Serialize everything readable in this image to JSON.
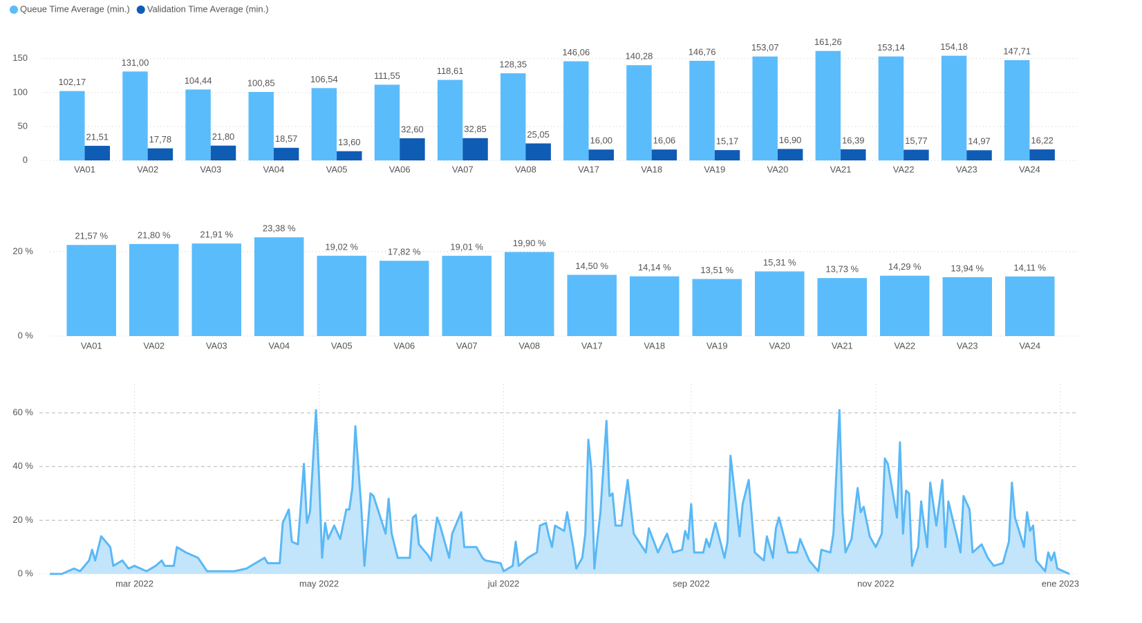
{
  "chart_data": [
    {
      "type": "bar",
      "categories": [
        "VA01",
        "VA02",
        "VA03",
        "VA04",
        "VA05",
        "VA06",
        "VA07",
        "VA08",
        "VA17",
        "VA18",
        "VA19",
        "VA20",
        "VA21",
        "VA22",
        "VA23",
        "VA24"
      ],
      "series": [
        {
          "name": "Queue Time Average (min.)",
          "color": "#5bbcfc",
          "values": [
            102.17,
            131.0,
            104.44,
            100.85,
            106.54,
            111.55,
            118.61,
            128.35,
            146.06,
            140.28,
            146.76,
            153.07,
            161.26,
            153.14,
            154.18,
            147.71
          ],
          "value_labels": [
            "102,17",
            "131,00",
            "104,44",
            "100,85",
            "106,54",
            "111,55",
            "118,61",
            "128,35",
            "146,06",
            "140,28",
            "146,76",
            "153,07",
            "161,26",
            "153,14",
            "154,18",
            "147,71"
          ]
        },
        {
          "name": "Validation Time Average (min.)",
          "color": "#0f5cb5",
          "values": [
            21.51,
            17.78,
            21.8,
            18.57,
            13.6,
            32.6,
            32.85,
            25.05,
            16.0,
            16.06,
            15.17,
            16.9,
            16.39,
            15.77,
            14.97,
            16.22
          ],
          "value_labels": [
            "21,51",
            "17,78",
            "21,80",
            "18,57",
            "13,60",
            "32,60",
            "32,85",
            "25,05",
            "16,00",
            "16,06",
            "15,17",
            "16,90",
            "16,39",
            "15,77",
            "14,97",
            "16,22"
          ]
        }
      ],
      "ylim": [
        0,
        165
      ],
      "yticks": [
        0,
        50,
        100,
        150
      ],
      "grid": true,
      "legend": "top-left"
    },
    {
      "type": "bar",
      "categories": [
        "VA01",
        "VA02",
        "VA03",
        "VA04",
        "VA05",
        "VA06",
        "VA07",
        "VA08",
        "VA17",
        "VA18",
        "VA19",
        "VA20",
        "VA21",
        "VA22",
        "VA23",
        "VA24"
      ],
      "series": [
        {
          "color": "#5bbcfc",
          "values": [
            21.57,
            21.8,
            21.91,
            23.38,
            19.02,
            17.82,
            19.01,
            19.9,
            14.5,
            14.14,
            13.51,
            15.31,
            13.73,
            14.29,
            13.94,
            14.11
          ],
          "value_labels": [
            "21,57 %",
            "21,80 %",
            "21,91 %",
            "23,38 %",
            "19,02 %",
            "17,82 %",
            "19,01 %",
            "19,90 %",
            "14,50 %",
            "14,14 %",
            "13,51 %",
            "15,31 %",
            "13,73 %",
            "14,29 %",
            "13,94 %",
            "14,11 %"
          ]
        }
      ],
      "ylim": [
        0,
        28
      ],
      "yticks": [
        {
          "value": 0,
          "label": "0 %"
        },
        {
          "value": 20,
          "label": "20 %"
        }
      ],
      "grid": true
    },
    {
      "type": "line",
      "x": [
        0,
        4,
        8,
        10,
        13,
        14,
        15,
        17,
        20,
        21,
        24,
        26,
        28,
        32,
        35,
        37,
        38,
        41,
        42,
        45,
        49,
        52,
        56,
        61,
        65,
        68,
        71,
        72,
        76,
        77,
        79,
        80,
        82,
        84,
        85,
        86,
        88,
        89,
        90,
        91,
        92,
        94,
        96,
        98,
        99,
        100,
        101,
        103,
        104,
        106,
        107,
        109,
        111,
        112,
        113,
        115,
        119,
        120,
        121,
        122,
        125,
        126,
        128,
        129,
        132,
        133,
        136,
        137,
        141,
        143,
        144,
        149,
        150,
        153,
        154,
        155,
        158,
        161,
        162,
        164,
        165,
        166,
        167,
        170,
        171,
        173,
        174,
        176,
        177,
        178,
        179,
        180,
        181,
        182,
        184,
        185,
        186,
        187,
        189,
        191,
        193,
        197,
        198,
        201,
        204,
        206,
        209,
        210,
        211,
        212,
        213,
        216,
        217,
        218,
        220,
        223,
        224,
        225,
        226,
        228,
        229,
        231,
        233,
        236,
        237,
        239,
        240,
        241,
        244,
        247,
        248,
        251,
        254,
        255,
        258,
        259,
        261,
        262,
        263,
        265,
        267,
        268,
        269,
        271,
        273,
        275,
        276,
        277,
        280,
        281,
        282,
        283,
        284,
        285,
        287,
        288,
        289,
        290,
        291,
        293,
        295,
        296,
        297,
        300,
        301,
        302,
        304,
        305,
        308,
        310,
        312,
        315,
        317,
        318,
        319,
        322,
        323,
        324,
        325,
        326,
        329,
        330,
        331,
        332,
        333,
        337
      ],
      "series": [
        {
          "color": "#5ab8f5",
          "fill": "#c2e5fc",
          "values": [
            0,
            0,
            2,
            1,
            5,
            9,
            5,
            14,
            10,
            3,
            5,
            2,
            3,
            1,
            3,
            5,
            3,
            3,
            10,
            8,
            6,
            1,
            1,
            1,
            2,
            4,
            6,
            4,
            4,
            19,
            24,
            12,
            11,
            41,
            19,
            23,
            61,
            36,
            6,
            19,
            13,
            18,
            13,
            24,
            24,
            32,
            55,
            24,
            3,
            30,
            29,
            22,
            15,
            28,
            15,
            6,
            6,
            21,
            22,
            11,
            7,
            5,
            21,
            18,
            6,
            15,
            23,
            10,
            10,
            6,
            5,
            4,
            1,
            3,
            12,
            3,
            6,
            8,
            18,
            19,
            14,
            10,
            18,
            16,
            23,
            10,
            2,
            6,
            15,
            50,
            39,
            2,
            13,
            23,
            57,
            29,
            30,
            18,
            18,
            35,
            15,
            8,
            17,
            8,
            15,
            8,
            9,
            16,
            13,
            26,
            8,
            8,
            13,
            10,
            19,
            6,
            12,
            44,
            34,
            14,
            26,
            35,
            8,
            5,
            14,
            6,
            17,
            21,
            8,
            8,
            13,
            5,
            1,
            9,
            8,
            15,
            61,
            23,
            8,
            13,
            32,
            23,
            25,
            14,
            10,
            15,
            43,
            41,
            21,
            49,
            15,
            31,
            30,
            3,
            10,
            27,
            18,
            10,
            34,
            18,
            35,
            10,
            27,
            13,
            8,
            29,
            24,
            8,
            11,
            6,
            3,
            4,
            12,
            34,
            21,
            10,
            23,
            16,
            18,
            5,
            1,
            8,
            5,
            8,
            2,
            0
          ]
        }
      ],
      "xlim": [
        0,
        337
      ],
      "xticks": [
        {
          "value": 28,
          "label": "mar 2022"
        },
        {
          "value": 89,
          "label": "may 2022"
        },
        {
          "value": 150,
          "label": "jul 2022"
        },
        {
          "value": 212,
          "label": "sep 2022"
        },
        {
          "value": 273,
          "label": "nov 2022"
        },
        {
          "value": 334,
          "label": "ene 2023"
        }
      ],
      "ylim": [
        0,
        68
      ],
      "yticks": [
        {
          "value": 0,
          "label": "0 %"
        },
        {
          "value": 20,
          "label": "20 %"
        },
        {
          "value": 40,
          "label": "40 %"
        },
        {
          "value": 60,
          "label": "60 %"
        }
      ],
      "grid": true,
      "area": true
    }
  ]
}
